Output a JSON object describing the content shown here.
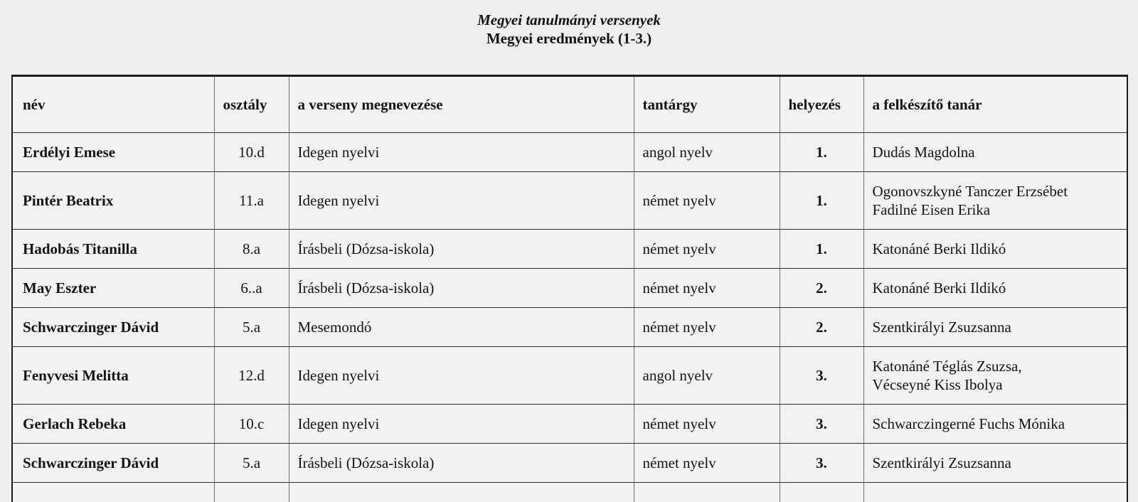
{
  "page": {
    "title": "Megyei tanulmányi versenyek",
    "subtitle": "Megyei eredmények (1-3.)"
  },
  "table": {
    "columns": [
      {
        "key": "nev",
        "label": "név"
      },
      {
        "key": "osztaly",
        "label": "osztály"
      },
      {
        "key": "verseny",
        "label": "a verseny megnevezése"
      },
      {
        "key": "tantargy",
        "label": "tantárgy"
      },
      {
        "key": "helyezes",
        "label": "helyezés"
      },
      {
        "key": "tanar",
        "label": "a felkészítő tanár"
      }
    ],
    "rows": [
      {
        "nev": "Erdélyi Emese",
        "osztaly": "10.d",
        "verseny": "Idegen nyelvi",
        "tantargy": "angol nyelv",
        "helyezes": "1.",
        "tanar": [
          "Dudás Magdolna"
        ]
      },
      {
        "nev": "Pintér Beatrix",
        "osztaly": "11.a",
        "verseny": "Idegen nyelvi",
        "tantargy": "német nyelv",
        "helyezes": "1.",
        "tanar": [
          "Ogonovszkyné Tanczer Erzsébet",
          "Fadilné Eisen Erika"
        ]
      },
      {
        "nev": "Hadobás Titanilla",
        "osztaly": "8.a",
        "verseny": "Írásbeli (Dózsa-iskola)",
        "tantargy": "német nyelv",
        "helyezes": "1.",
        "tanar": [
          "Katonáné Berki Ildikó"
        ]
      },
      {
        "nev": "May Eszter",
        "osztaly": "6..a",
        "verseny": "Írásbeli (Dózsa-iskola)",
        "tantargy": "német nyelv",
        "helyezes": "2.",
        "tanar": [
          "Katonáné Berki Ildikó"
        ]
      },
      {
        "nev": "Schwarczinger Dávid",
        "osztaly": "5.a",
        "verseny": "Mesemondó",
        "tantargy": "német nyelv",
        "helyezes": "2.",
        "tanar": [
          "Szentkirályi Zsuzsanna"
        ]
      },
      {
        "nev": "Fenyvesi Melitta",
        "osztaly": "12.d",
        "verseny": "Idegen nyelvi",
        "tantargy": "angol nyelv",
        "helyezes": "3.",
        "tanar": [
          "Katonáné Téglás Zsuzsa,",
          "Vécseyné Kiss Ibolya"
        ]
      },
      {
        "nev": "Gerlach Rebeka",
        "osztaly": "10.c",
        "verseny": "Idegen nyelvi",
        "tantargy": "német nyelv",
        "helyezes": "3.",
        "tanar": [
          "Schwarczingerné Fuchs Mónika"
        ]
      },
      {
        "nev": "Schwarczinger Dávid",
        "osztaly": "5.a",
        "verseny": "Írásbeli (Dózsa-iskola)",
        "tantargy": "német nyelv",
        "helyezes": "3.",
        "tanar": [
          "Szentkirályi Zsuzsanna"
        ]
      }
    ]
  },
  "colors": {
    "page_background": "#f0eeec",
    "cell_background": "#f4f2f0",
    "outer_border": "#1c1c1c",
    "inner_vertical_border": "#6e6e6e",
    "inner_horizontal_border": "#2e2e2e",
    "text": "#141414"
  }
}
